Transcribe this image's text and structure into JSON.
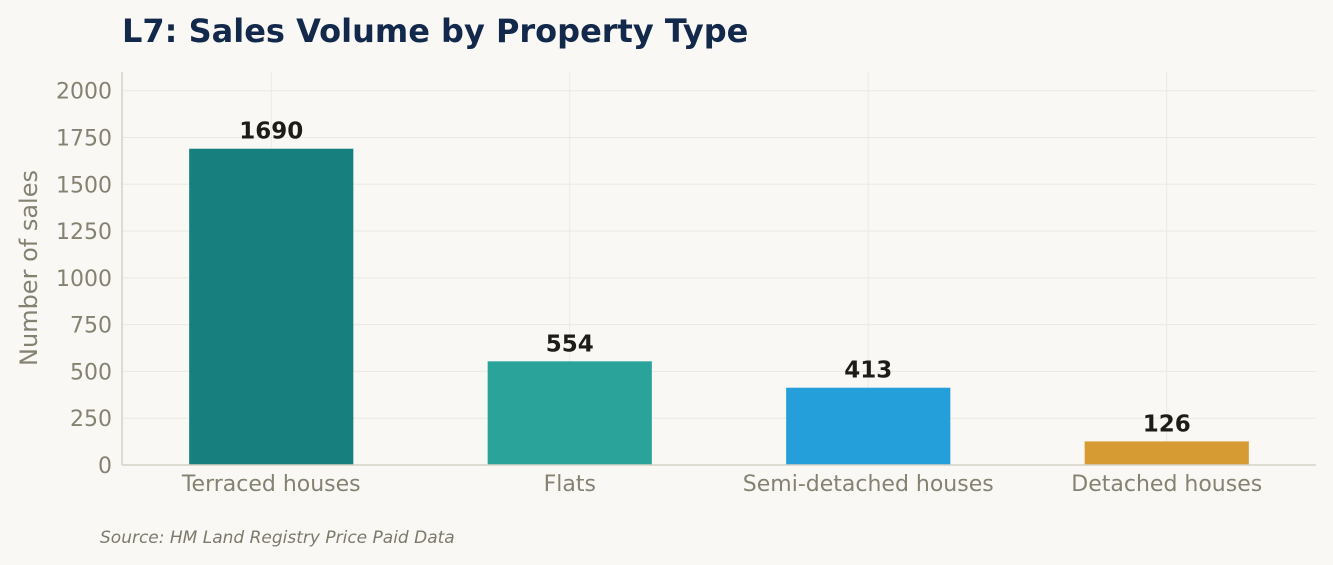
{
  "chart_data": {
    "type": "bar",
    "title": "L7: Sales Volume by Property Type",
    "ylabel": "Number of sales",
    "xlabel": "",
    "categories": [
      "Terraced houses",
      "Flats",
      "Semi-detached houses",
      "Detached houses"
    ],
    "values": [
      1690,
      554,
      413,
      126
    ],
    "value_labels": [
      "1690",
      "554",
      "413",
      "126"
    ],
    "bar_colors": [
      "#17807e",
      "#2aa39b",
      "#249fda",
      "#d69b33"
    ],
    "ylim": [
      0,
      2100
    ],
    "yticks": [
      0,
      250,
      500,
      750,
      1000,
      1250,
      1500,
      1750,
      2000
    ],
    "ytick_labels": [
      "0",
      "250",
      "500",
      "750",
      "1000",
      "1250",
      "1500",
      "1750",
      "2000"
    ],
    "grid": true,
    "source": "Source: HM Land Registry Price Paid Data"
  }
}
